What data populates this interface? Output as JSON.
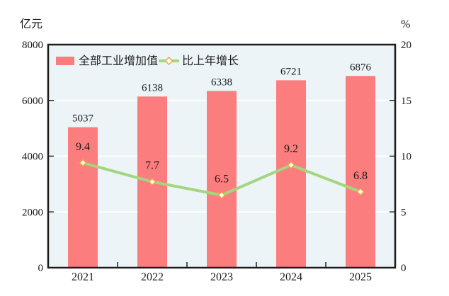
{
  "colors": {
    "bar": "#fc7d7d",
    "line": "#a3d67f",
    "marker_fill": "#ffffff",
    "marker_stroke": "#f0a63c",
    "plot_bg": "#ecf4f7",
    "grid": "#ffffff",
    "axis": "#1c1c1c",
    "text": "#1a1a1a"
  },
  "chart_data": {
    "type": "bar+line combo",
    "categories": [
      "2021",
      "2022",
      "2023",
      "2024",
      "2025"
    ],
    "series": [
      {
        "name": "全部工业增加值",
        "type": "bar",
        "axis": "left",
        "values": [
          5037,
          6138,
          6338,
          6721,
          6876
        ]
      },
      {
        "name": "比上年增长",
        "type": "line",
        "axis": "right",
        "values": [
          9.4,
          7.7,
          6.5,
          9.2,
          6.8
        ]
      }
    ],
    "left_axis": {
      "label": "亿元",
      "min": 0,
      "max": 8000,
      "ticks": [
        0,
        2000,
        4000,
        6000,
        8000
      ]
    },
    "right_axis": {
      "label": "%",
      "min": 0,
      "max": 20,
      "ticks": [
        0,
        5,
        10,
        15,
        20
      ]
    },
    "grid": true,
    "legend_position": "top-inside"
  }
}
